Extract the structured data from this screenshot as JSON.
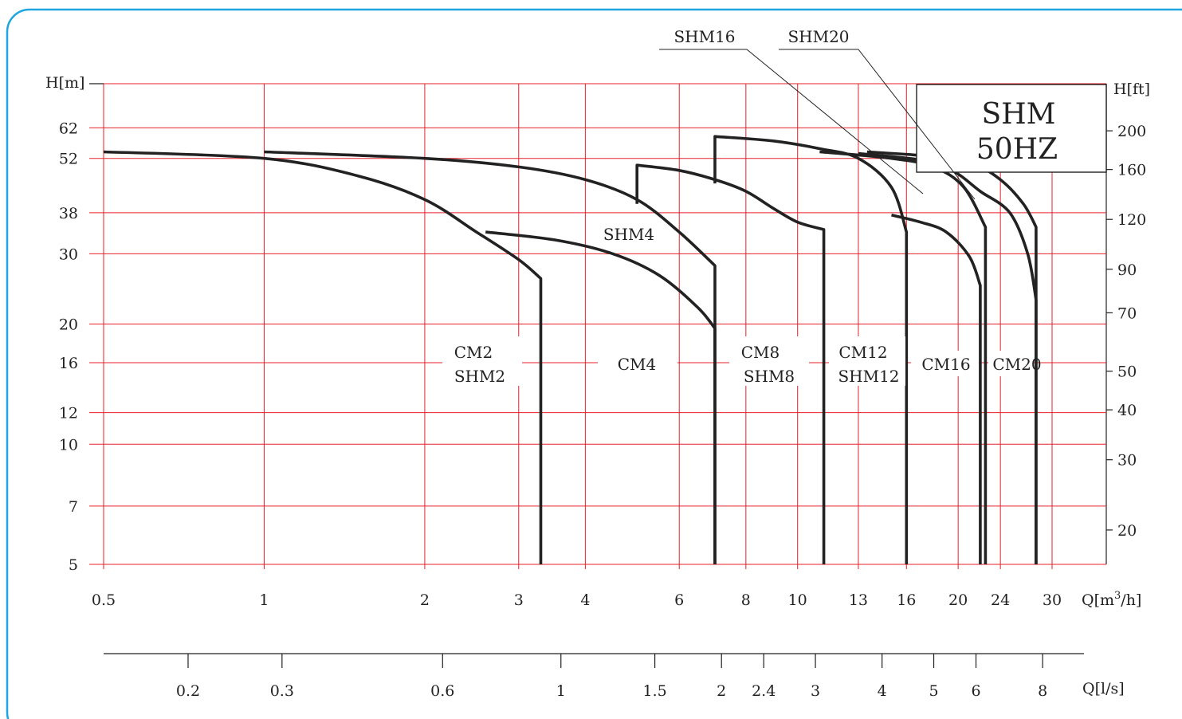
{
  "colors": {
    "frame": "#1ea6e0",
    "grid": "#e8202a",
    "curve": "#222222",
    "text": "#222222"
  },
  "chart_data": {
    "type": "line",
    "title": "SHM",
    "subtitle": "50HZ",
    "x_scale": "log",
    "y_scale": "log",
    "xlabel": "Q[m³/h]",
    "xlabel_base": "Q[m",
    "xlabel_sup": "3",
    "xlabel_tail": "/h]",
    "ylabel_left": "H[m]",
    "ylabel_right": "H[ft]",
    "xlabel_secondary": "Q[l/s]",
    "xlim": [
      0.5,
      30
    ],
    "ylim": [
      5,
      80
    ],
    "grid": true,
    "x_ticks": [
      0.5,
      1,
      2,
      3,
      4,
      6,
      8,
      10,
      13,
      16,
      20,
      24,
      30
    ],
    "x_tick_labels": [
      "0.5",
      "1",
      "2",
      "3",
      "4",
      "6",
      "8",
      "10",
      "13",
      "16",
      "20",
      "24",
      "30"
    ],
    "y_ticks": [
      5,
      7,
      10,
      12,
      16,
      20,
      30,
      38,
      52,
      62
    ],
    "y_tick_labels": [
      "5",
      "7",
      "10",
      "12",
      "16",
      "20",
      "30",
      "38",
      "52",
      "62"
    ],
    "y2_ticks_ft": [
      20,
      30,
      40,
      50,
      70,
      90,
      120,
      160,
      200
    ],
    "y2_tick_labels": [
      "20",
      "30",
      "40",
      "50",
      "70",
      "90",
      "120",
      "160",
      "200"
    ],
    "ls_ticks": [
      0.2,
      0.3,
      0.6,
      1,
      1.5,
      2,
      2.4,
      3,
      4,
      5,
      6,
      8
    ],
    "ls_tick_labels": [
      "0.2",
      "0.3",
      "0.6",
      "1",
      "1.5",
      "2",
      "2.4",
      "3",
      "4",
      "5",
      "6",
      "8"
    ],
    "series": [
      {
        "name": "CM2 / SHM2",
        "points": [
          [
            0.5,
            54
          ],
          [
            1,
            52
          ],
          [
            1.5,
            47
          ],
          [
            2,
            41
          ],
          [
            2.5,
            34
          ],
          [
            3,
            29
          ],
          [
            3.3,
            26
          ],
          [
            3.3,
            5
          ]
        ]
      },
      {
        "name": "SHM4",
        "points": [
          [
            2.6,
            34
          ],
          [
            3.5,
            32.5
          ],
          [
            4.5,
            30
          ],
          [
            5.5,
            26.5
          ],
          [
            6.5,
            22
          ],
          [
            7,
            19.5
          ],
          [
            7,
            5
          ]
        ]
      },
      {
        "name": "CM4",
        "points": [
          [
            1,
            54
          ],
          [
            2,
            52
          ],
          [
            3,
            49.5
          ],
          [
            4,
            46
          ],
          [
            5,
            41
          ],
          [
            6,
            34
          ],
          [
            7,
            28
          ],
          [
            7,
            5
          ]
        ]
      },
      {
        "name": "SHM8",
        "points": [
          [
            5,
            40
          ],
          [
            5,
            50
          ],
          [
            6,
            48.5
          ],
          [
            7,
            46
          ],
          [
            8,
            43
          ],
          [
            9,
            39
          ],
          [
            10,
            36
          ],
          [
            11.2,
            34.5
          ],
          [
            11.2,
            5
          ]
        ]
      },
      {
        "name": "CM8",
        "points": [
          [
            7,
            45
          ],
          [
            7,
            59
          ],
          [
            9,
            57.5
          ],
          [
            11,
            55
          ],
          [
            13,
            52
          ],
          [
            15,
            44
          ],
          [
            16,
            34
          ],
          [
            16,
            5
          ]
        ]
      },
      {
        "name": "SHM12",
        "points": [
          [
            15,
            37.5
          ],
          [
            17,
            36
          ],
          [
            19,
            34
          ],
          [
            21,
            29.5
          ],
          [
            22,
            25
          ],
          [
            22,
            5
          ]
        ]
      },
      {
        "name": "CM12 / SHM12",
        "points": [
          [
            11,
            54
          ],
          [
            15,
            52
          ],
          [
            18,
            49.5
          ],
          [
            20.5,
            44
          ],
          [
            22.5,
            35
          ],
          [
            22.5,
            5
          ]
        ]
      },
      {
        "name": "CM16",
        "points": [
          [
            13,
            53.5
          ],
          [
            18,
            51
          ],
          [
            20,
            47.5
          ],
          [
            22,
            43
          ],
          [
            25,
            38
          ],
          [
            27,
            30
          ],
          [
            28,
            23
          ],
          [
            28,
            5
          ]
        ]
      },
      {
        "name": "CM20",
        "points": [
          [
            13.5,
            54
          ],
          [
            18,
            52.5
          ],
          [
            21.5,
            50
          ],
          [
            24,
            46
          ],
          [
            26.5,
            40
          ],
          [
            28,
            35
          ],
          [
            28,
            5
          ]
        ]
      }
    ],
    "annotations": {
      "cm2_a": "CM2",
      "cm2_b": "SHM2",
      "shm4": "SHM4",
      "cm4": "CM4",
      "cm8_a": "CM8",
      "cm8_b": "SHM8",
      "cm12_a": "CM12",
      "cm12_b": "SHM12",
      "cm16": "CM16",
      "cm20": "CM20",
      "shm16": "SHM16",
      "shm20": "SHM20"
    }
  }
}
